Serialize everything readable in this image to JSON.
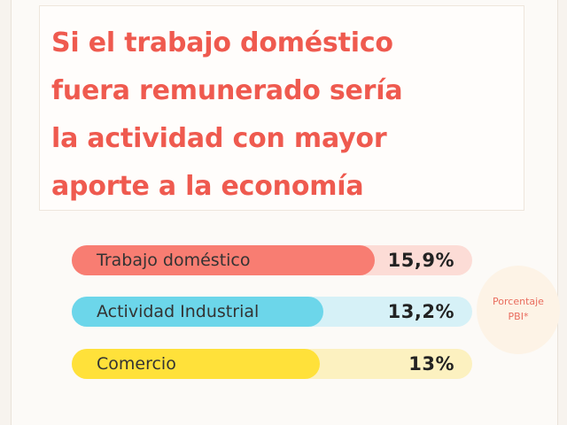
{
  "title_lines": [
    "Si el trabajo doméstico",
    "fuera remunerado sería",
    "la actividad con mayor",
    "aporte a la economía"
  ],
  "badge_lines": [
    "Porcentaje",
    "PBI*"
  ],
  "colors": {
    "title": "#ef5a4f",
    "badge_text": "#e96c5e"
  },
  "chart_data": {
    "type": "bar",
    "orientation": "horizontal",
    "categories": [
      "Trabajo doméstico",
      "Actividad Industrial",
      "Comercio"
    ],
    "values": [
      15.9,
      13.2,
      13
    ],
    "value_labels": [
      "15,9%",
      "13,2%",
      "13%"
    ],
    "unit": "Porcentaje PBI*",
    "xlim": [
      0,
      21
    ],
    "bar_colors": [
      "#f87d72",
      "#6cd6ea",
      "#ffe13a"
    ],
    "track_colors": [
      "#fcdcd6",
      "#d6f1f7",
      "#fcf1c0"
    ]
  }
}
